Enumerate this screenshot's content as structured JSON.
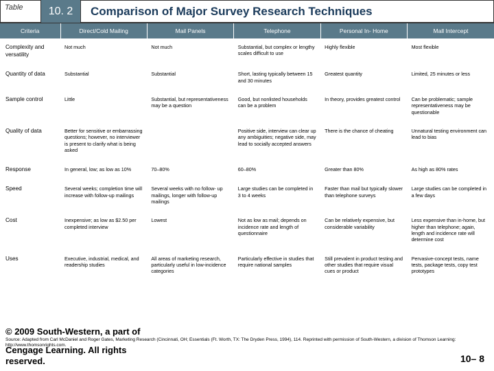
{
  "header": {
    "label": "Table",
    "number": "10. 2",
    "title": "Comparison of Major Survey Research Techniques"
  },
  "columns": [
    "Criteria",
    "Direct/Cold Mailing",
    "Mail Panels",
    "Telephone",
    "Personal In- Home",
    "Mall Intercept"
  ],
  "rows": [
    {
      "crit": "Complexity and versatility",
      "c": [
        "Not much",
        "Not much",
        "Substantial, but complex or lengthy scales difficult to use",
        "Highly flexible",
        "Most flexible"
      ]
    },
    {
      "crit": "Quantity of data",
      "c": [
        "Substantial",
        "Substantial",
        "Short, lasting typically between 15 and 30 minutes",
        "Greatest quantity",
        "Limited, 25 minutes or less"
      ]
    },
    {
      "crit": "Sample control",
      "c": [
        "Little",
        "Substantial, but representativeness may be a question",
        "Good, but nonlisted households can be a problem",
        "In theory, provides greatest control",
        "Can be problematic; sample representativeness may be questionable"
      ]
    },
    {
      "crit": "Quality of data",
      "c": [
        "Better for sensitive or embarrassing questions; however, no interviewer is present to clarify what is being asked",
        "",
        "Positive side, interview can clear up any ambiguities; negative side, may lead to socially accepted answers",
        "There is the chance of cheating",
        "Unnatural testing environment can lead to bias"
      ]
    },
    {
      "crit": "Response",
      "c": [
        "In general, low; as low as 10%",
        "70–80%",
        "60–80%",
        "Greater than 80%",
        "As high as 80% rates"
      ]
    },
    {
      "crit": "Speed",
      "c": [
        "Several weeks; completion time will increase with follow-up mailings",
        "Several weeks with no follow- up mailings, longer with follow-up mailings",
        "Large studies can be completed in 3 to 4 weeks",
        "Faster than mail but typically slower than telephone surveys",
        "Large studies can be completed in a few days"
      ]
    },
    {
      "crit": "Cost",
      "c": [
        "Inexpensive; as low as $2.50 per completed interview",
        "Lowest",
        "Not as low as mail; depends on incidence rate and length of questionnaire",
        "Can be relatively expensive, but considerable variability",
        "Less expensive than in-home, but higher than telephone; again, length and incidence rate will determine cost"
      ]
    },
    {
      "crit": "Uses",
      "c": [
        "Executive, industrial, medical, and readership studies",
        "All areas of marketing research, particularly useful in low-incidence categories",
        "Particularly effective in studies that require national samples",
        "Still prevalent in product testing and other studies that require visual cues or product",
        "Pervasive-concept tests, name tests, package tests, copy test prototypes"
      ]
    }
  ],
  "footer": {
    "copyright_a": "© 2009 South-Western, a part of",
    "copyright_b": "Cengage Learning. All rights",
    "copyright_c": "reserved.",
    "source": "Source: Adapted from Carl McDaniel and Roger Gates, Marketing Research (Cincinnati, OH; Essentials (Ft. Worth, TX: The Dryden Press, 1994), 114. Reprinted with permission of South-Western, a division of Thomson Learning: http://www.thomsonrights.com.",
    "page": "10– 8"
  },
  "style": {
    "header_bg": "#5a7a8a",
    "header_text": "#1a3a5a",
    "body_font_pt": 7.2,
    "th_font_pt": 8.5,
    "title_font_pt": 17
  }
}
